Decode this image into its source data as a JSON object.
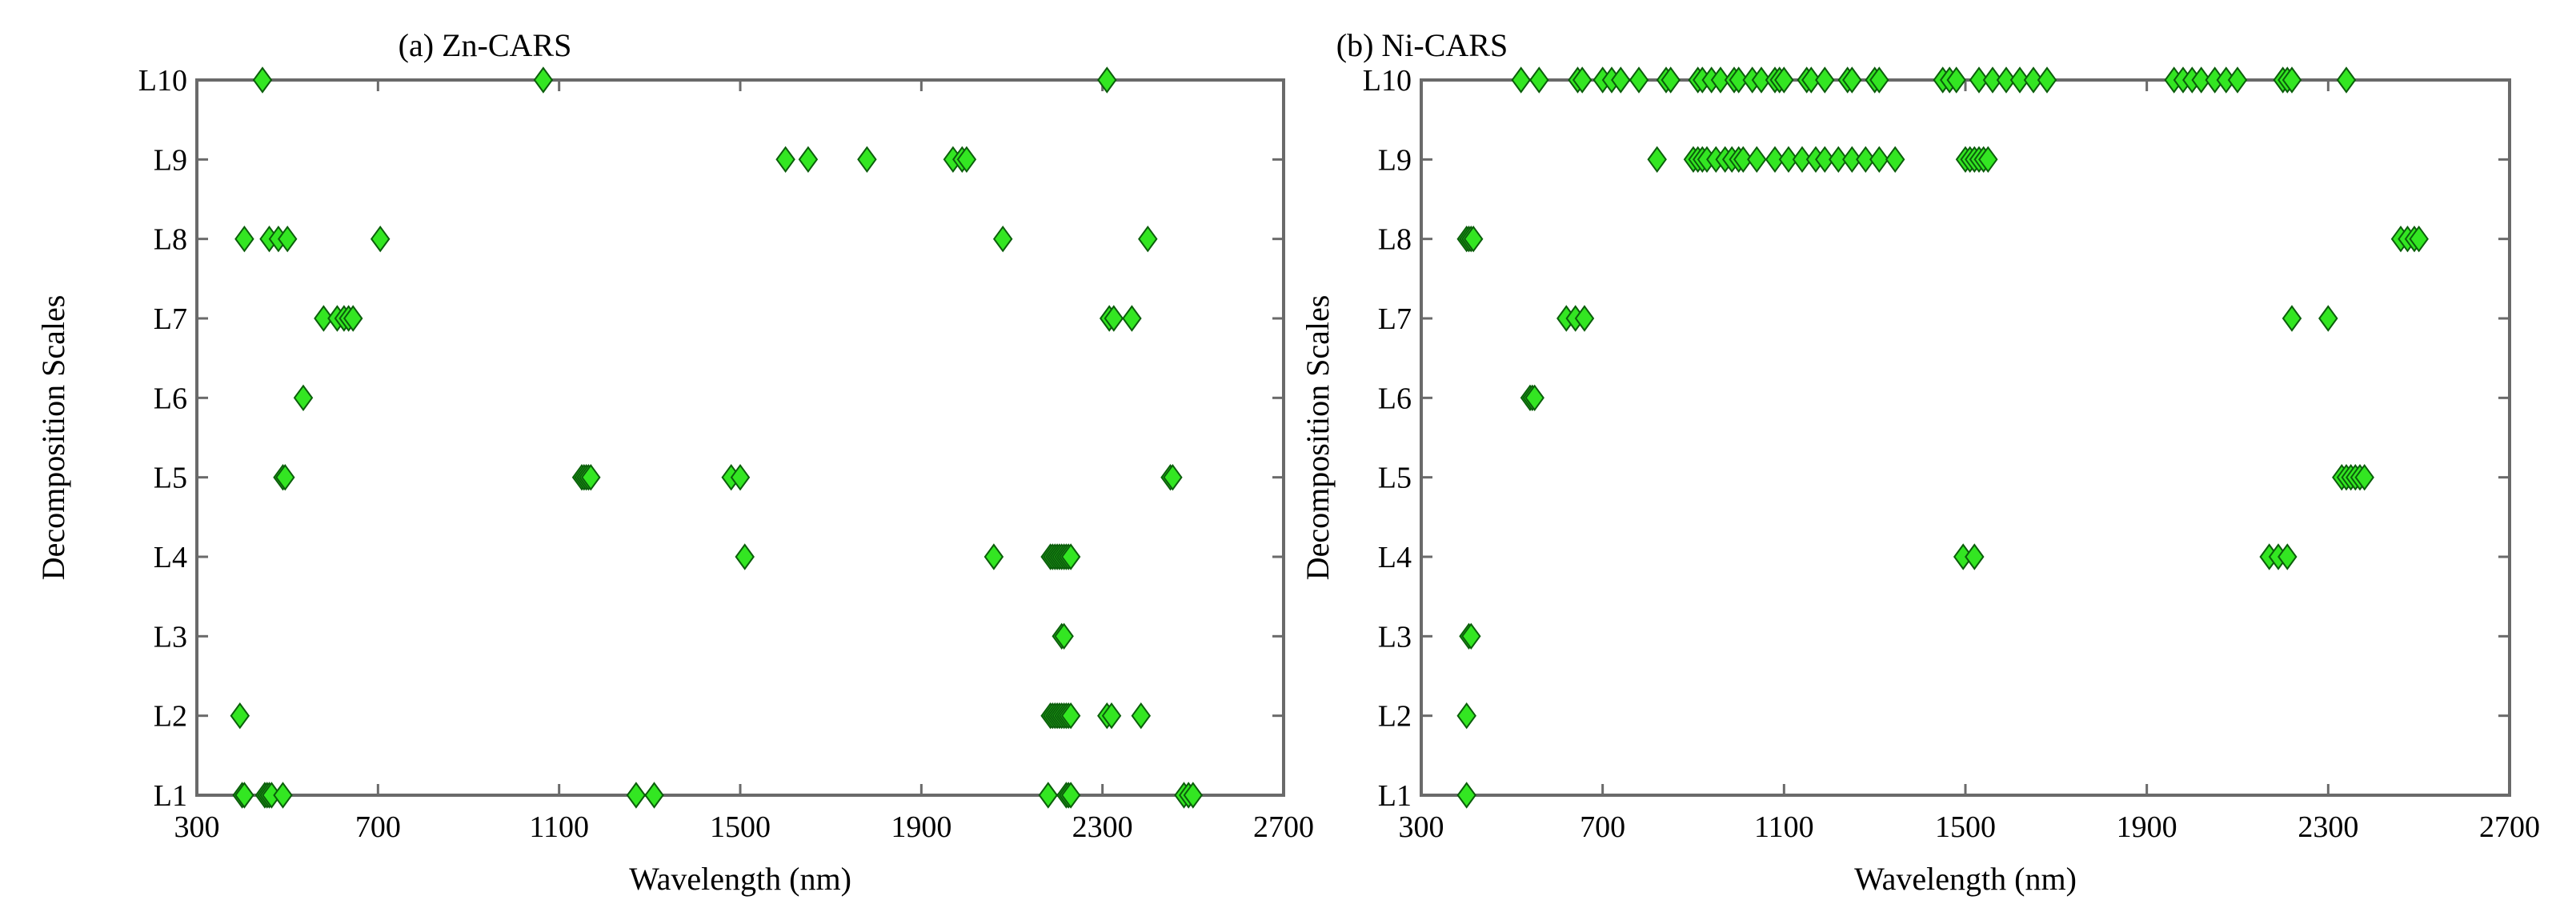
{
  "colors": {
    "marker_fill": "#33e622",
    "marker_stroke": "#0b5e0b",
    "axes": "#6a6a6a",
    "background": "#ffffff"
  },
  "chart_data": [
    {
      "type": "scatter",
      "title": "(a) Zn-CARS",
      "xlabel": "Wavelength (nm)",
      "ylabel": "Decomposition Scales",
      "xlim": [
        300,
        2700
      ],
      "x_ticks": [
        300,
        700,
        1100,
        1500,
        1900,
        2300,
        2700
      ],
      "y_categories": [
        "L1",
        "L2",
        "L3",
        "L4",
        "L5",
        "L6",
        "L7",
        "L8",
        "L9",
        "L10"
      ],
      "grid": false,
      "marker": "diamond",
      "points": {
        "L10": [
          445,
          1065,
          2310
        ],
        "L9": [
          1600,
          1650,
          1780,
          1970,
          1990,
          2000
        ],
        "L8": [
          405,
          460,
          480,
          500,
          705,
          2080,
          2400
        ],
        "L7": [
          580,
          610,
          625,
          635,
          645,
          2315,
          2325,
          2365
        ],
        "L6": [
          535
        ],
        "L5": [
          490,
          495,
          1150,
          1155,
          1160,
          1165,
          1170,
          1480,
          1500,
          2450,
          2455
        ],
        "L4": [
          1510,
          2060,
          2185,
          2190,
          2195,
          2200,
          2205,
          2210,
          2215,
          2220,
          2225,
          2230
        ],
        "L3": [
          2210,
          2215
        ],
        "L2": [
          395,
          2185,
          2190,
          2195,
          2200,
          2205,
          2210,
          2215,
          2220,
          2225,
          2230,
          2310,
          2320,
          2385
        ],
        "L1": [
          400,
          405,
          450,
          455,
          460,
          465,
          490,
          1270,
          1310,
          2180,
          2220,
          2225,
          2230,
          2480,
          2490,
          2500
        ]
      }
    },
    {
      "type": "scatter",
      "title": "(b) Ni-CARS",
      "xlabel": "Wavelength (nm)",
      "ylabel": "Decomposition Scales",
      "xlim": [
        300,
        2700
      ],
      "x_ticks": [
        300,
        700,
        1100,
        1500,
        1900,
        2300,
        2700
      ],
      "y_categories": [
        "L1",
        "L2",
        "L3",
        "L4",
        "L5",
        "L6",
        "L7",
        "L8",
        "L9",
        "L10"
      ],
      "grid": false,
      "marker": "diamond",
      "points": {
        "L10": [
          520,
          560,
          645,
          655,
          700,
          720,
          740,
          780,
          840,
          850,
          910,
          920,
          940,
          960,
          990,
          1000,
          1030,
          1050,
          1080,
          1090,
          1100,
          1150,
          1160,
          1190,
          1240,
          1250,
          1300,
          1310,
          1450,
          1465,
          1480,
          1530,
          1560,
          1590,
          1620,
          1650,
          1680,
          1960,
          1980,
          2000,
          2020,
          2050,
          2075,
          2100,
          2200,
          2210,
          2220,
          2340
        ],
        "L9": [
          820,
          900,
          910,
          920,
          930,
          950,
          970,
          985,
          1000,
          1010,
          1040,
          1080,
          1110,
          1140,
          1170,
          1190,
          1220,
          1250,
          1280,
          1310,
          1345,
          1500,
          1510,
          1520,
          1530,
          1540,
          1550
        ],
        "L8": [
          400,
          405,
          410,
          415,
          2460,
          2475,
          2490,
          2500
        ],
        "L7": [
          620,
          640,
          660,
          2220,
          2300
        ],
        "L6": [
          540,
          545,
          550
        ],
        "L5": [
          2330,
          2340,
          2350,
          2360,
          2370,
          2380
        ],
        "L4": [
          1495,
          1520,
          2170,
          2190,
          2210
        ],
        "L3": [
          405,
          410
        ],
        "L2": [
          400
        ],
        "L1": [
          400
        ]
      }
    }
  ]
}
